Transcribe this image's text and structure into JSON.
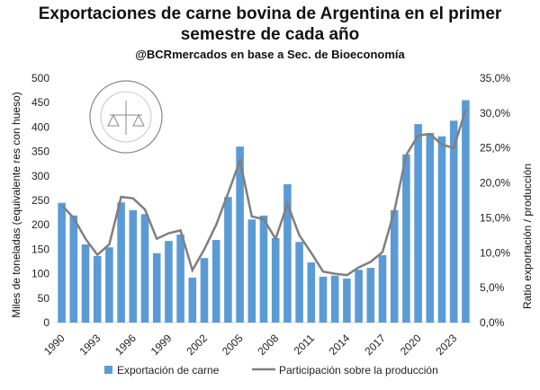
{
  "chart_data": {
    "type": "bar",
    "title": "Exportaciones de carne bovina de Argentina en el primer semestre de cada año",
    "subtitle": "@BCRmercados en base a Sec. de Bioeconomía",
    "watermark": "BOLSA DE COMERCIO DE ROSARIO",
    "ylabel": "Miles de toneladas (equivalente  res con hueso)",
    "y2label": "Ratio exportación / producción",
    "ylim": [
      0,
      500
    ],
    "y2lim": [
      0,
      35
    ],
    "yticks": [
      "0",
      "50",
      "100",
      "150",
      "200",
      "250",
      "300",
      "350",
      "400",
      "450",
      "500"
    ],
    "y2ticks": [
      "0,0%",
      "5,0%",
      "10,0%",
      "15,0%",
      "20,0%",
      "25,0%",
      "30,0%",
      "35,0%"
    ],
    "x": [
      1990,
      1991,
      1992,
      1993,
      1994,
      1995,
      1996,
      1997,
      1998,
      1999,
      2000,
      2001,
      2002,
      2003,
      2004,
      2005,
      2006,
      2007,
      2008,
      2009,
      2010,
      2011,
      2012,
      2013,
      2014,
      2015,
      2016,
      2017,
      2018,
      2019,
      2020,
      2021,
      2022,
      2023,
      2024
    ],
    "xticks": [
      "1990",
      "1993",
      "1996",
      "1999",
      "2002",
      "2005",
      "2008",
      "2011",
      "2014",
      "2017",
      "2020",
      "2023"
    ],
    "series": [
      {
        "name": "Exportación de carne",
        "type": "bar",
        "axis": "left",
        "color": "#5b9bd5",
        "values": [
          245,
          219,
          160,
          136,
          154,
          246,
          230,
          222,
          142,
          167,
          180,
          92,
          132,
          169,
          257,
          360,
          211,
          219,
          173,
          283,
          165,
          123,
          94,
          96,
          90,
          108,
          112,
          138,
          230,
          344,
          406,
          388,
          381,
          413,
          455
        ]
      },
      {
        "name": "Participación sobre la producción",
        "type": "line",
        "axis": "right",
        "color": "#7f7f7f",
        "values": [
          16.8,
          15.0,
          12.0,
          9.7,
          11.2,
          18.0,
          17.8,
          16.2,
          12.0,
          12.8,
          13.2,
          7.5,
          10.5,
          14.0,
          18.5,
          23.2,
          15.2,
          14.8,
          12.0,
          17.0,
          12.5,
          10.0,
          7.3,
          7.0,
          6.8,
          7.9,
          8.7,
          10.1,
          16.0,
          24.0,
          26.8,
          27.0,
          25.5,
          25.0,
          30.5
        ]
      }
    ],
    "legend": "bottom"
  }
}
